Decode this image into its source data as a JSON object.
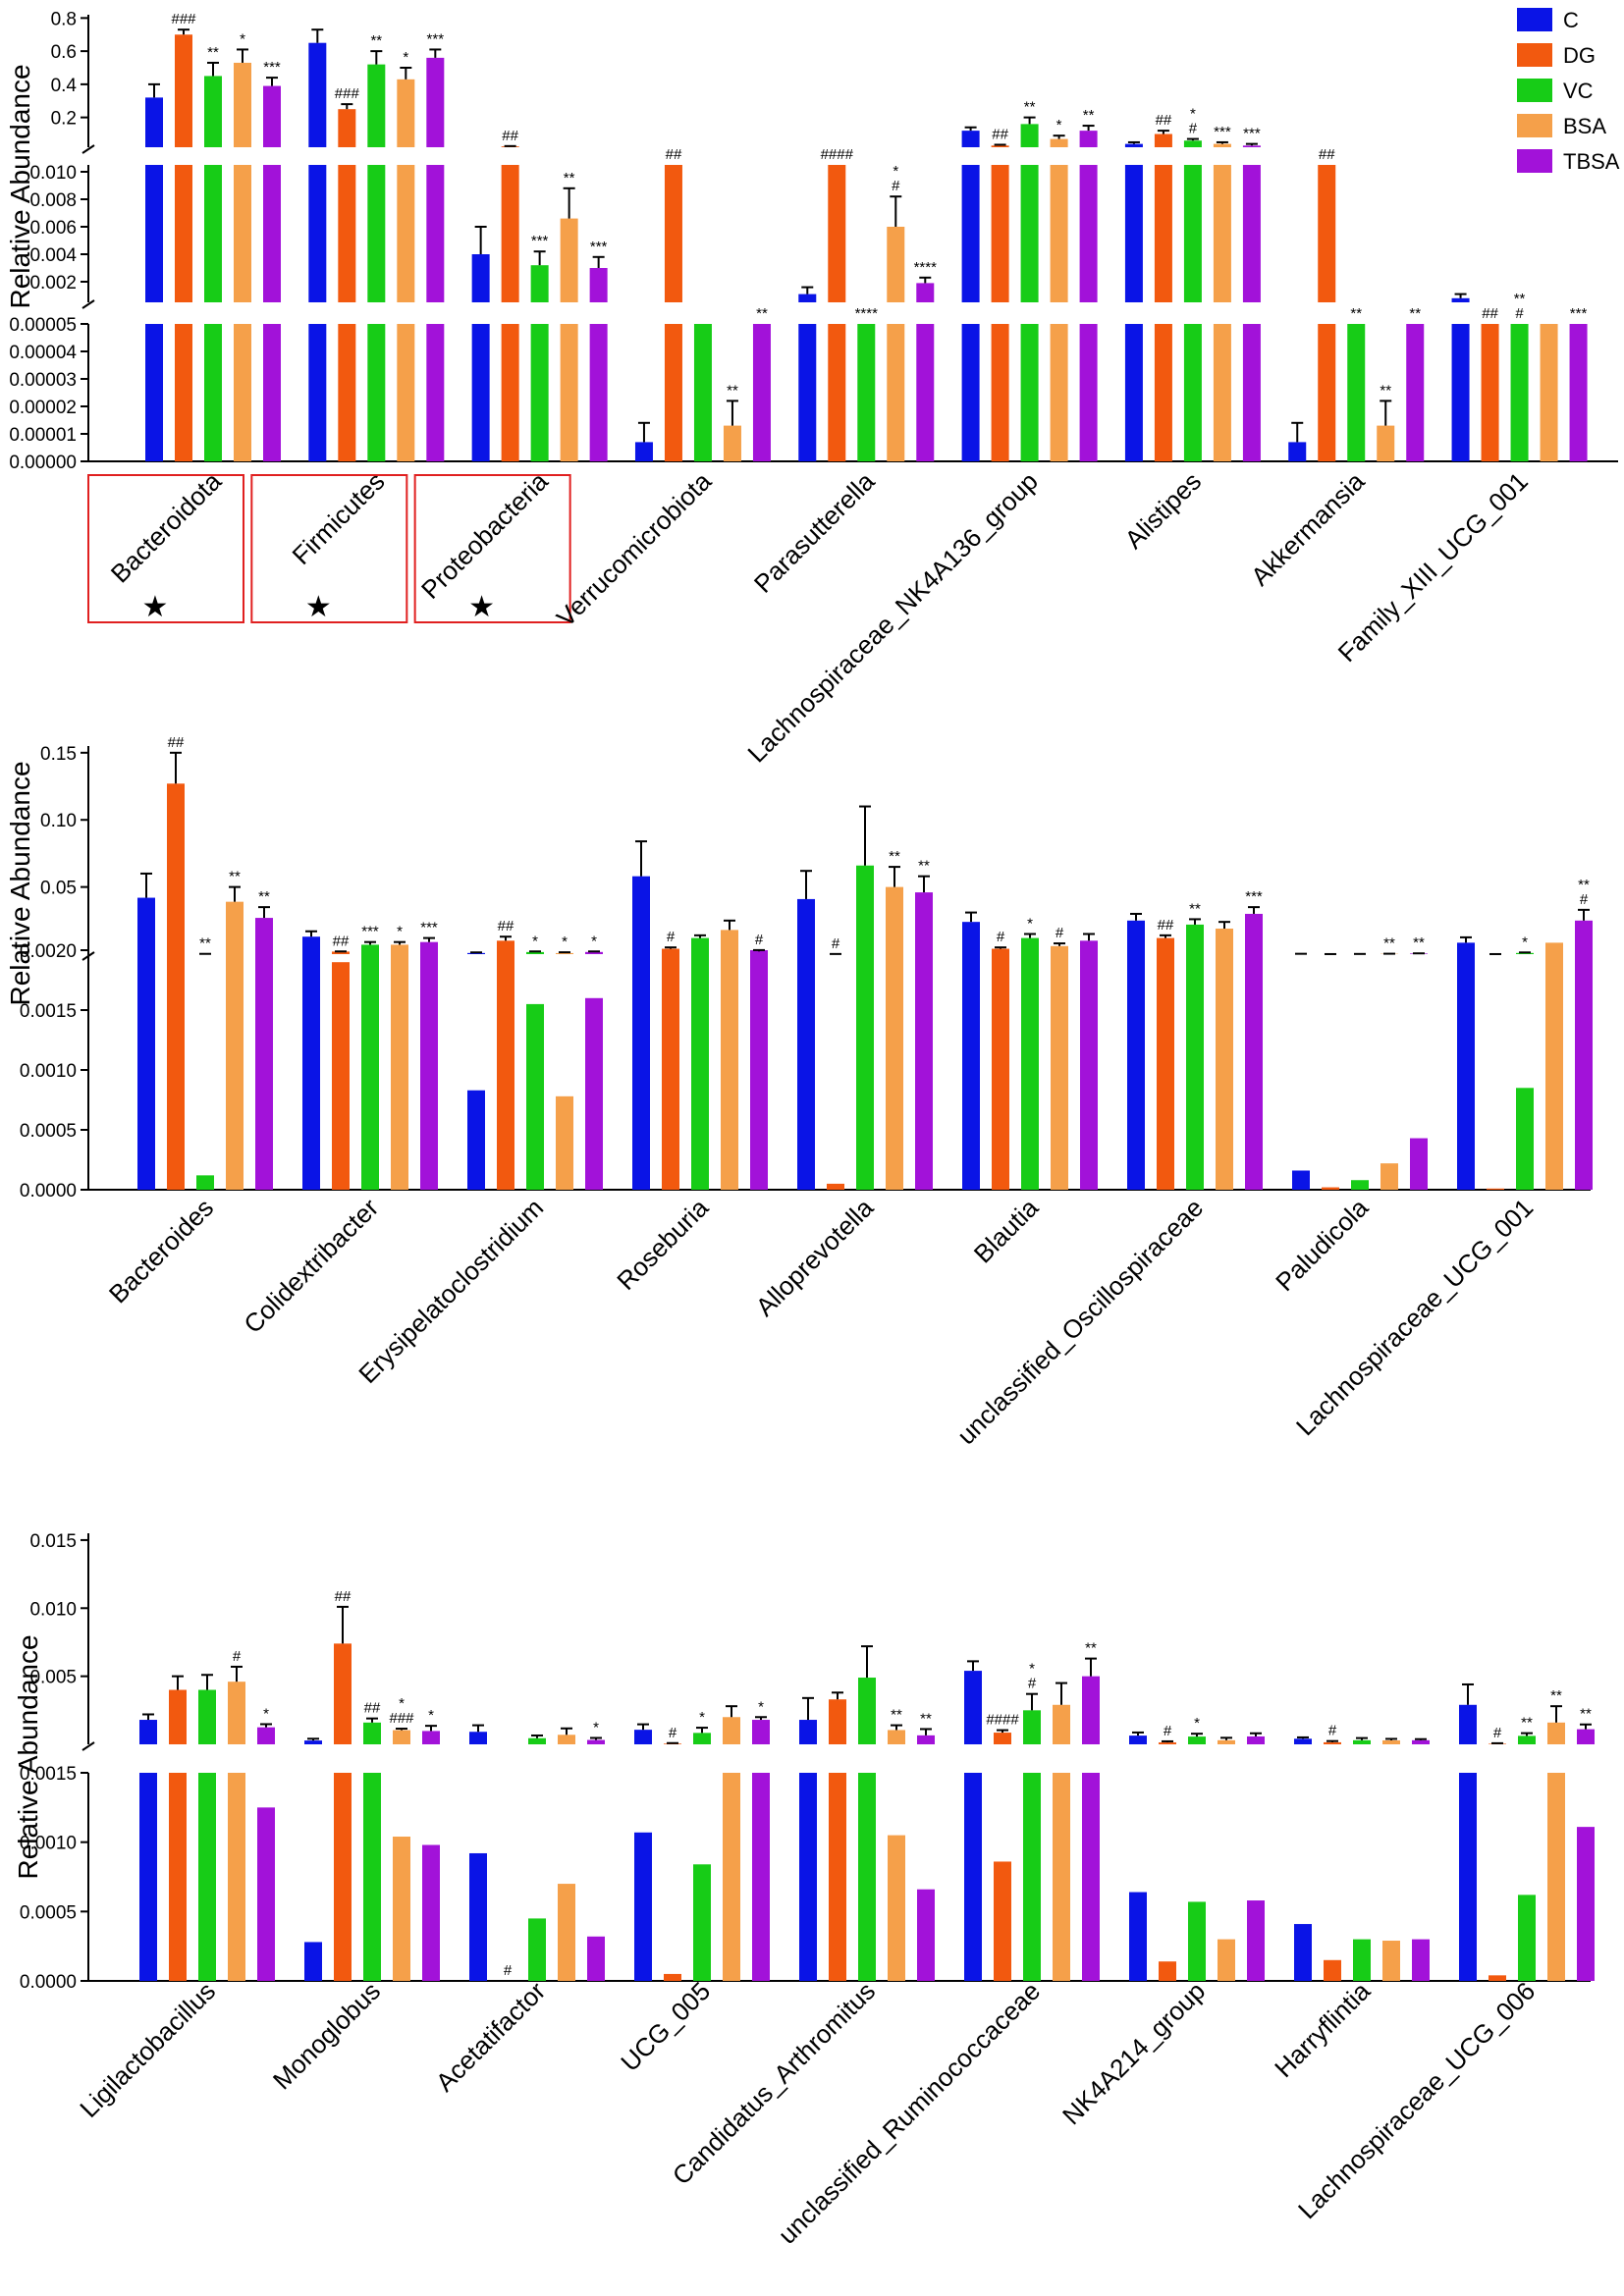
{
  "colors": {
    "C": "#0A14E6",
    "DG": "#F2590F",
    "VC": "#17CC17",
    "BSA": "#F5A04A",
    "TBSA": "#A212D9"
  },
  "legend": [
    {
      "name": "C",
      "color": "#0A14E6"
    },
    {
      "name": "DG",
      "color": "#F2590F"
    },
    {
      "name": "VC",
      "color": "#17CC17"
    },
    {
      "name": "BSA",
      "color": "#F5A04A"
    },
    {
      "name": "TBSA",
      "color": "#A212D9"
    }
  ],
  "chart_data": [
    {
      "type": "bar",
      "ylabel": "Relative Abundance",
      "groups": [
        "C",
        "DG",
        "VC",
        "BSA",
        "TBSA"
      ],
      "segments": [
        {
          "range": [
            0,
            5e-05
          ],
          "ticks": [
            "0.00000",
            "0.00001",
            "0.00002",
            "0.00003",
            "0.00004",
            "0.00005"
          ]
        },
        {
          "range": [
            0.0005,
            0.0105
          ],
          "ticks": [
            "0.002",
            "0.004",
            "0.006",
            "0.008",
            "0.010"
          ]
        },
        {
          "range": [
            0.02,
            0.82
          ],
          "ticks": [
            "0.2",
            "0.4",
            "0.6",
            "0.8"
          ]
        }
      ],
      "categories": [
        {
          "label": "Bacteroidota",
          "highlight": true,
          "values": [
            0.32,
            0.7,
            0.45,
            0.53,
            0.39
          ],
          "err": [
            0.08,
            0.03,
            0.08,
            0.08,
            0.05
          ],
          "sig": [
            "",
            "###",
            "**",
            "*",
            "***"
          ]
        },
        {
          "label": "Firmicutes",
          "highlight": true,
          "values": [
            0.65,
            0.25,
            0.52,
            0.43,
            0.56
          ],
          "err": [
            0.08,
            0.03,
            0.08,
            0.07,
            0.05
          ],
          "sig": [
            "",
            "###",
            "**",
            "*",
            "***"
          ]
        },
        {
          "label": "Proteobacteria",
          "highlight": true,
          "values": [
            0.004,
            0.025,
            0.0032,
            0.0066,
            0.003
          ],
          "err": [
            0.002,
            0.002,
            0.001,
            0.0022,
            0.0008
          ],
          "sig": [
            "",
            "##",
            "***",
            "**",
            "***"
          ]
        },
        {
          "label": "Verrucomicrobiota",
          "values": [
            7e-06,
            0.012,
            0.0002,
            1.3e-05,
            0.0001
          ],
          "err": [
            7e-06,
            0.001,
            0.0001,
            9e-06,
            5e-05
          ],
          "sig": [
            "",
            "##",
            "",
            "**",
            "**"
          ]
        },
        {
          "label": "Parasutterella",
          "values": [
            0.0011,
            0.012,
            0.0001,
            0.006,
            0.0019
          ],
          "err": [
            0.0005,
            0.001,
            5e-05,
            0.0022,
            0.0004
          ],
          "sig": [
            "",
            "####",
            "****",
            "*|#",
            "****"
          ]
        },
        {
          "label": "Lachnospiraceae_NK4A136_group",
          "values": [
            0.12,
            0.03,
            0.16,
            0.07,
            0.12
          ],
          "err": [
            0.02,
            0.005,
            0.04,
            0.02,
            0.03
          ],
          "sig": [
            "",
            "##",
            "**",
            "*",
            "**"
          ]
        },
        {
          "label": "Alistipes",
          "values": [
            0.04,
            0.1,
            0.06,
            0.04,
            0.03
          ],
          "err": [
            0.01,
            0.02,
            0.01,
            0.01,
            0.01
          ],
          "sig": [
            "",
            "##",
            "*|#",
            "***",
            "***"
          ]
        },
        {
          "label": "Akkermansia",
          "values": [
            7e-06,
            0.012,
            0.0002,
            1.3e-05,
            0.0001
          ],
          "err": [
            7e-06,
            0.001,
            0.0001,
            9e-06,
            5e-05
          ],
          "sig": [
            "",
            "##",
            "**",
            "**",
            "**"
          ]
        },
        {
          "label": "Family_XIII_UCG_001",
          "values": [
            0.0008,
            0.0001,
            0.0002,
            0.0003,
            0.0005
          ],
          "err": [
            0.0003,
            0.0001,
            0.0001,
            0.0001,
            0.0002
          ],
          "sig": [
            "",
            "##",
            "**|#",
            "",
            "***"
          ]
        }
      ]
    },
    {
      "type": "bar",
      "ylabel": "Relative Abundance",
      "groups": [
        "C",
        "DG",
        "VC",
        "BSA",
        "TBSA"
      ],
      "segments": [
        {
          "range": [
            0,
            0.002
          ],
          "ticks": [
            "0.0000",
            "0.0005",
            "0.0010",
            "0.0015",
            "0.0020"
          ]
        },
        {
          "range": [
            0.0,
            0.155
          ],
          "ticks": [
            "0.05",
            "0.10",
            "0.15"
          ]
        }
      ],
      "categories": [
        {
          "label": "Bacteroides",
          "values": [
            0.042,
            0.127,
            0.00012,
            0.039,
            0.027
          ],
          "err": [
            0.018,
            0.023,
            8e-05,
            0.011,
            0.008
          ],
          "sig": [
            "",
            "##",
            "**",
            "**",
            "**"
          ]
        },
        {
          "label": "Colidextribacter",
          "values": [
            0.013,
            0.0019,
            0.007,
            0.007,
            0.009
          ],
          "err": [
            0.004,
            0.0001,
            0.002,
            0.002,
            0.003
          ],
          "sig": [
            "",
            "##",
            "***",
            "*",
            "***"
          ]
        },
        {
          "label": "Erysipelatoclostridium",
          "values": [
            0.00083,
            0.01,
            0.00155,
            0.00078,
            0.0016
          ],
          "err": [
            0.00045,
            0.003,
            0.00045,
            0.0006,
            0.0004
          ],
          "sig": [
            "",
            "##",
            "*",
            "*",
            "*"
          ]
        },
        {
          "label": "Roseburia",
          "values": [
            0.058,
            0.004,
            0.012,
            0.018,
            0.002
          ],
          "err": [
            0.026,
            0.001,
            0.002,
            0.007,
            0.001
          ],
          "sig": [
            "",
            "#",
            "",
            "",
            "#"
          ]
        },
        {
          "label": "Alloprevotella",
          "values": [
            0.041,
            5e-05,
            0.066,
            0.05,
            0.046
          ],
          "err": [
            0.021,
            5e-05,
            0.044,
            0.015,
            0.012
          ],
          "sig": [
            "",
            "#",
            "",
            "**",
            "**"
          ]
        },
        {
          "label": "Blautia",
          "values": [
            0.024,
            0.004,
            0.012,
            0.006,
            0.01
          ],
          "err": [
            0.007,
            0.001,
            0.003,
            0.002,
            0.005
          ],
          "sig": [
            "",
            "#",
            "*",
            "#",
            ""
          ]
        },
        {
          "label": "unclassified_Oscillospiraceae",
          "values": [
            0.025,
            0.012,
            0.022,
            0.019,
            0.03
          ],
          "err": [
            0.005,
            0.002,
            0.004,
            0.005,
            0.005
          ],
          "sig": [
            "",
            "##",
            "**",
            "",
            "***"
          ]
        },
        {
          "label": "Paludicola",
          "values": [
            0.00016,
            2e-05,
            8e-05,
            0.00022,
            0.00043
          ],
          "err": [
            9e-05,
            1e-05,
            5e-05,
            8e-05,
            0.00014
          ],
          "sig": [
            "",
            "",
            "",
            "**",
            "**"
          ]
        },
        {
          "label": "Lachnospiraceae_UCG_001",
          "values": [
            0.0085,
            1e-05,
            0.00085,
            0.0085,
            0.025
          ],
          "err": [
            0.004,
            1e-05,
            0.0004,
            0.0,
            0.008
          ],
          "sig": [
            "",
            "",
            "*",
            "",
            "**|#"
          ]
        }
      ]
    },
    {
      "type": "bar",
      "ylabel": "Relative Abundance",
      "groups": [
        "C",
        "DG",
        "VC",
        "BSA",
        "TBSA"
      ],
      "segments": [
        {
          "range": [
            0,
            0.0015
          ],
          "ticks": [
            "0.0000",
            "0.0005",
            "0.0010",
            "0.0015"
          ]
        },
        {
          "range": [
            0.0,
            0.0155
          ],
          "ticks": [
            "0.005",
            "0.010",
            "0.015"
          ]
        }
      ],
      "categories": [
        {
          "label": "Ligilactobacillus",
          "values": [
            0.0018,
            0.004,
            0.004,
            0.0046,
            0.00125
          ],
          "err": [
            0.0004,
            0.001,
            0.0011,
            0.0011,
            0.00023
          ],
          "sig": [
            "",
            "",
            "",
            "#",
            "*"
          ]
        },
        {
          "label": "Monoglobus",
          "values": [
            0.00028,
            0.0074,
            0.0016,
            0.00104,
            0.00098
          ],
          "err": [
            0.00013,
            0.0027,
            0.0003,
            0.00011,
            0.00038
          ],
          "sig": [
            "",
            "##",
            "##",
            "*|###",
            "*"
          ]
        },
        {
          "label": "Acetatifactor",
          "values": [
            0.00092,
            0.0,
            0.00045,
            0.0007,
            0.00032
          ],
          "err": [
            0.00048,
            0.0,
            0.0002,
            0.00047,
            0.00015
          ],
          "sig": [
            "",
            "#",
            "",
            "",
            "*"
          ]
        },
        {
          "label": "UCG_005",
          "values": [
            0.00107,
            5e-05,
            0.00084,
            0.002,
            0.0018
          ],
          "err": [
            0.0004,
            4e-05,
            0.00038,
            0.0008,
            0.0002
          ],
          "sig": [
            "",
            "#",
            "*",
            "",
            "*"
          ]
        },
        {
          "label": "Candidatus_Arthromitus",
          "values": [
            0.0018,
            0.0033,
            0.0049,
            0.00105,
            0.00066
          ],
          "err": [
            0.0016,
            0.0005,
            0.0023,
            0.00035,
            0.00046
          ],
          "sig": [
            "",
            "",
            "",
            "**",
            "**"
          ]
        },
        {
          "label": "unclassified_Ruminococcaceae",
          "values": [
            0.0054,
            0.00086,
            0.0025,
            0.0029,
            0.005
          ],
          "err": [
            0.0007,
            0.00018,
            0.0012,
            0.0016,
            0.0013
          ],
          "sig": [
            "",
            "####",
            "*|#",
            "",
            "**"
          ]
        },
        {
          "label": "NK4A214_group",
          "values": [
            0.00064,
            0.00014,
            0.00057,
            0.0003,
            0.00058
          ],
          "err": [
            0.00023,
            8e-05,
            0.00021,
            0.00018,
            0.00023
          ],
          "sig": [
            "",
            "#",
            "*",
            "",
            ""
          ]
        },
        {
          "label": "Harryflintia",
          "values": [
            0.00041,
            0.00015,
            0.0003,
            0.00029,
            0.0003
          ],
          "err": [
            0.0001,
            9e-05,
            0.00016,
            0.00011,
            8e-05
          ],
          "sig": [
            "",
            "#",
            "",
            "",
            ""
          ]
        },
        {
          "label": "Lachnospiraceae_UCG_006",
          "values": [
            0.0029,
            4e-05,
            0.00062,
            0.0016,
            0.00111
          ],
          "err": [
            0.0015,
            4e-05,
            0.0002,
            0.0012,
            0.00035
          ],
          "sig": [
            "",
            "#",
            "**",
            "**",
            "**"
          ]
        }
      ]
    }
  ]
}
